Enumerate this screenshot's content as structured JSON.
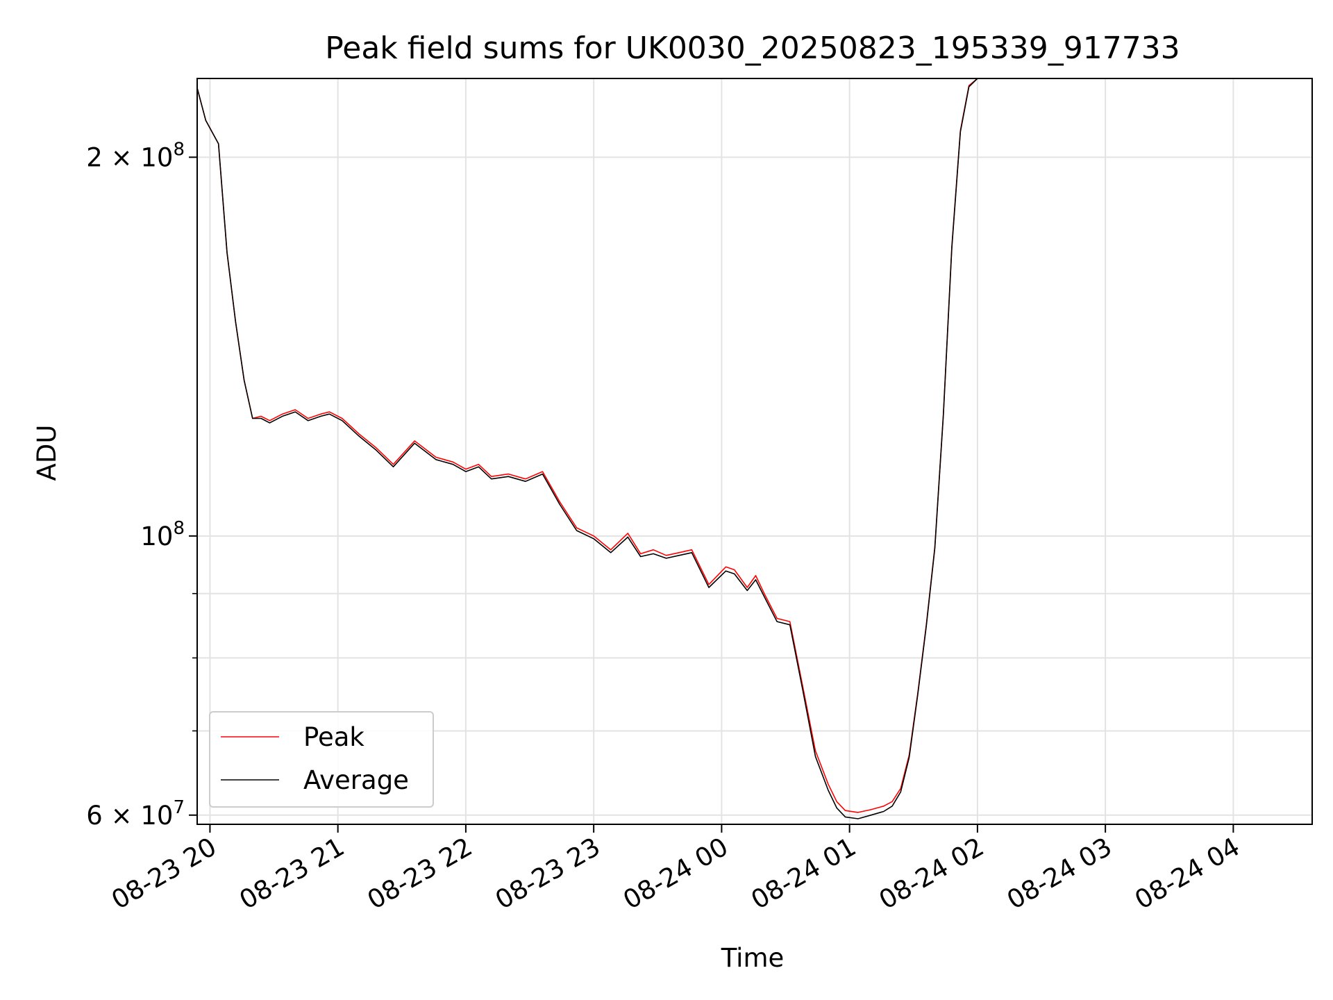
{
  "chart_data": {
    "type": "line",
    "title": "Peak field sums for UK0030_20250823_195339_917733",
    "xlabel": "Time",
    "ylabel": "ADU",
    "yscale": "log",
    "ylim": [
      59000000,
      231000000
    ],
    "xlim": [
      "2025-08-23 19:54",
      "2025-08-24 04:37"
    ],
    "x_ticks": [
      "08-23 20",
      "08-23 21",
      "08-23 22",
      "08-23 23",
      "08-24 00",
      "08-24 01",
      "08-24 02",
      "08-24 03",
      "08-24 04"
    ],
    "y_ticks": [
      {
        "value": 60000000,
        "base": "6 × 10",
        "exp": "7"
      },
      {
        "value": 100000000,
        "base": "10",
        "exp": "8"
      },
      {
        "value": 200000000,
        "base": "2 × 10",
        "exp": "8"
      }
    ],
    "y_minor_ticks": [
      70000000,
      80000000,
      90000000
    ],
    "grid": true,
    "legend": "lower-left",
    "series": [
      {
        "name": "Peak",
        "color": "#ff0000",
        "x": [
          "2025-08-23 19:54",
          "2025-08-23 19:58",
          "2025-08-23 20:04",
          "2025-08-23 20:08",
          "2025-08-23 20:12",
          "2025-08-23 20:16",
          "2025-08-23 20:20",
          "2025-08-23 20:24",
          "2025-08-23 20:28",
          "2025-08-23 20:34",
          "2025-08-23 20:40",
          "2025-08-23 20:46",
          "2025-08-23 20:52",
          "2025-08-23 20:56",
          "2025-08-23 21:02",
          "2025-08-23 21:10",
          "2025-08-23 21:18",
          "2025-08-23 21:26",
          "2025-08-23 21:36",
          "2025-08-23 21:46",
          "2025-08-23 21:54",
          "2025-08-23 22:00",
          "2025-08-23 22:06",
          "2025-08-23 22:12",
          "2025-08-23 22:20",
          "2025-08-23 22:28",
          "2025-08-23 22:36",
          "2025-08-23 22:44",
          "2025-08-23 22:52",
          "2025-08-23 23:00",
          "2025-08-23 23:08",
          "2025-08-23 23:16",
          "2025-08-23 23:22",
          "2025-08-23 23:28",
          "2025-08-23 23:34",
          "2025-08-23 23:40",
          "2025-08-23 23:46",
          "2025-08-23 23:54",
          "2025-08-24 00:02",
          "2025-08-24 00:06",
          "2025-08-24 00:12",
          "2025-08-24 00:16",
          "2025-08-24 00:20",
          "2025-08-24 00:26",
          "2025-08-24 00:32",
          "2025-08-24 00:38",
          "2025-08-24 00:44",
          "2025-08-24 00:50",
          "2025-08-24 00:54",
          "2025-08-24 00:58",
          "2025-08-24 01:04",
          "2025-08-24 01:10",
          "2025-08-24 01:16",
          "2025-08-24 01:20",
          "2025-08-24 01:24",
          "2025-08-24 01:28",
          "2025-08-24 01:32",
          "2025-08-24 01:36",
          "2025-08-24 01:40",
          "2025-08-24 01:44",
          "2025-08-24 01:48",
          "2025-08-24 01:52",
          "2025-08-24 01:56",
          "2025-08-24 02:00",
          "2025-08-24 02:06",
          "2025-08-24 02:14",
          "2025-08-24 02:24",
          "2025-08-24 02:34",
          "2025-08-24 02:44",
          "2025-08-24 02:54",
          "2025-08-24 03:04",
          "2025-08-24 03:14",
          "2025-08-24 03:24",
          "2025-08-24 03:30",
          "2025-08-24 03:36",
          "2025-08-24 03:42",
          "2025-08-24 03:48",
          "2025-08-24 03:54",
          "2025-08-24 04:00",
          "2025-08-24 04:06",
          "2025-08-24 04:12",
          "2025-08-24 04:18",
          "2025-08-24 04:24",
          "2025-08-24 04:30",
          "2025-08-24 04:37"
        ],
        "y": [
          227000000,
          214000000,
          205000000,
          168000000,
          148000000,
          133000000,
          124000000,
          124500000,
          123500000,
          125000000,
          126000000,
          124000000,
          125000000,
          125500000,
          124000000,
          120500000,
          117500000,
          114000000,
          119000000,
          115500000,
          114500000,
          113000000,
          114000000,
          111500000,
          112000000,
          111000000,
          112500000,
          106500000,
          101500000,
          100000000,
          97500000,
          100500000,
          96800000,
          97500000,
          96500000,
          97000000,
          97500000,
          91500000,
          94500000,
          94000000,
          91000000,
          93000000,
          90000000,
          86000000,
          85500000,
          76000000,
          67500000,
          63500000,
          61500000,
          60500000,
          60300000,
          60600000,
          61000000,
          61500000,
          63000000,
          67000000,
          75000000,
          85000000,
          98000000,
          125000000,
          170000000,
          210000000,
          228000000,
          231000000,
          231000000,
          231000000,
          231000000,
          231000000,
          231000000,
          231000000,
          231000000,
          231000000,
          231000000,
          231000000,
          231000000,
          231000000,
          231000000,
          231000000,
          231000000,
          231000000,
          231000000,
          231000000,
          231000000,
          231000000,
          231000000
        ]
      },
      {
        "name": "Average",
        "color": "#000000",
        "x": [
          "2025-08-23 19:54",
          "2025-08-23 19:58",
          "2025-08-23 20:04",
          "2025-08-23 20:08",
          "2025-08-23 20:12",
          "2025-08-23 20:16",
          "2025-08-23 20:20",
          "2025-08-23 20:24",
          "2025-08-23 20:28",
          "2025-08-23 20:34",
          "2025-08-23 20:40",
          "2025-08-23 20:46",
          "2025-08-23 20:52",
          "2025-08-23 20:56",
          "2025-08-23 21:02",
          "2025-08-23 21:10",
          "2025-08-23 21:18",
          "2025-08-23 21:26",
          "2025-08-23 21:36",
          "2025-08-23 21:46",
          "2025-08-23 21:54",
          "2025-08-23 22:00",
          "2025-08-23 22:06",
          "2025-08-23 22:12",
          "2025-08-23 22:20",
          "2025-08-23 22:28",
          "2025-08-23 22:36",
          "2025-08-23 22:44",
          "2025-08-23 22:52",
          "2025-08-23 23:00",
          "2025-08-23 23:08",
          "2025-08-23 23:16",
          "2025-08-23 23:22",
          "2025-08-23 23:28",
          "2025-08-23 23:34",
          "2025-08-23 23:40",
          "2025-08-23 23:46",
          "2025-08-23 23:54",
          "2025-08-24 00:02",
          "2025-08-24 00:06",
          "2025-08-24 00:12",
          "2025-08-24 00:16",
          "2025-08-24 00:20",
          "2025-08-24 00:26",
          "2025-08-24 00:32",
          "2025-08-24 00:38",
          "2025-08-24 00:44",
          "2025-08-24 00:50",
          "2025-08-24 00:54",
          "2025-08-24 00:58",
          "2025-08-24 01:04",
          "2025-08-24 01:10",
          "2025-08-24 01:16",
          "2025-08-24 01:20",
          "2025-08-24 01:24",
          "2025-08-24 01:28",
          "2025-08-24 01:32",
          "2025-08-24 01:36",
          "2025-08-24 01:40",
          "2025-08-24 01:44",
          "2025-08-24 01:48",
          "2025-08-24 01:52",
          "2025-08-24 01:56",
          "2025-08-24 02:00",
          "2025-08-24 02:06",
          "2025-08-24 02:14",
          "2025-08-24 02:24",
          "2025-08-24 02:34",
          "2025-08-24 02:44",
          "2025-08-24 02:54",
          "2025-08-24 03:04",
          "2025-08-24 03:14",
          "2025-08-24 03:24",
          "2025-08-24 03:30",
          "2025-08-24 03:36",
          "2025-08-24 03:42",
          "2025-08-24 03:48",
          "2025-08-24 03:54",
          "2025-08-24 04:00",
          "2025-08-24 04:06",
          "2025-08-24 04:12",
          "2025-08-24 04:18",
          "2025-08-24 04:24",
          "2025-08-24 04:30",
          "2025-08-24 04:37"
        ],
        "y": [
          227000000,
          214000000,
          205000000,
          168000000,
          148000000,
          133000000,
          124000000,
          124000000,
          123000000,
          124500000,
          125500000,
          123500000,
          124500000,
          125000000,
          123500000,
          120000000,
          117000000,
          113500000,
          118500000,
          115000000,
          114000000,
          112500000,
          113500000,
          111000000,
          111500000,
          110500000,
          112000000,
          106000000,
          101000000,
          99500000,
          97000000,
          99800000,
          96300000,
          96800000,
          96000000,
          96500000,
          97000000,
          91000000,
          93800000,
          93300000,
          90500000,
          92300000,
          89500000,
          85500000,
          85000000,
          75500000,
          66800000,
          62800000,
          60800000,
          59800000,
          59600000,
          60000000,
          60400000,
          61000000,
          62600000,
          66700000,
          74800000,
          84800000,
          97800000,
          124800000,
          169500000,
          209500000,
          227500000,
          231000000,
          231000000,
          231000000,
          231000000,
          231000000,
          231000000,
          231000000,
          231000000,
          231000000,
          231000000,
          231000000,
          231000000,
          231000000,
          231000000,
          231000000,
          231000000,
          231000000,
          231000000,
          231000000,
          231000000,
          231000000,
          231000000
        ]
      }
    ]
  }
}
